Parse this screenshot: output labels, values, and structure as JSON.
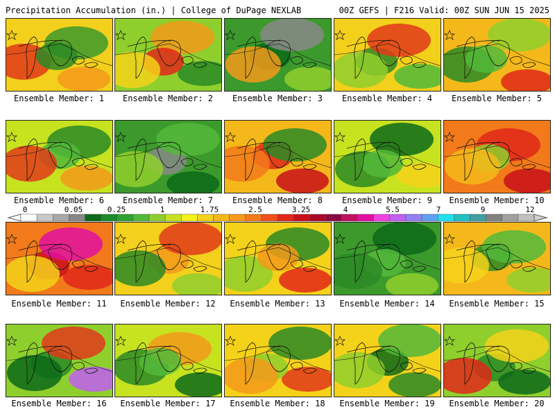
{
  "header": {
    "title_left": "Precipitation Accumulation (in.) | College of DuPage NEXLAB",
    "title_right": "00Z GEFS | F216 Valid: 00Z SUN JUN 15 2025"
  },
  "colorbar": {
    "tick_labels": [
      "0",
      "0.05",
      "0.25",
      "1",
      "1.75",
      "2.5",
      "3.25",
      "4",
      "5.5",
      "7",
      "9",
      "12"
    ],
    "segment_colors": [
      "#ffffff",
      "#c8c8c8",
      "#a8a8a8",
      "#888888",
      "#0c6a1a",
      "#1b8a28",
      "#2ea22e",
      "#52b83a",
      "#8fcf2d",
      "#c7e21f",
      "#f4f21a",
      "#f5d21a",
      "#f5b81a",
      "#f59a1a",
      "#f57a1a",
      "#f0501a",
      "#e2281a",
      "#c8101a",
      "#a80a2a",
      "#8a0a40",
      "#c01060",
      "#e010a0",
      "#f040e0",
      "#c060f0",
      "#9080f0",
      "#60a0f0",
      "#20e0f0",
      "#20c0c0",
      "#40a0a0",
      "#808080",
      "#a0a0a0",
      "#c0c0c0"
    ]
  },
  "panels": [
    {
      "label": "Ensemble Member: 1",
      "tone": "#f3d01b",
      "blobs": [
        "#e03a1a",
        "#3c9a2c",
        "#f29a1a",
        "#2c8a26"
      ]
    },
    {
      "label": "Ensemble Member: 2",
      "tone": "#8fcf2d",
      "blobs": [
        "#f29a1a",
        "#2c8a26",
        "#e0281a",
        "#f5d21a"
      ]
    },
    {
      "label": "Ensemble Member: 3",
      "tone": "#3c9a2c",
      "blobs": [
        "#8fcf2d",
        "#0c6a1a",
        "#f29a1a",
        "#888888"
      ]
    },
    {
      "label": "Ensemble Member: 4",
      "tone": "#f3d01b",
      "blobs": [
        "#2c8a26",
        "#8fcf2d",
        "#e03a1a",
        "#52b83a"
      ]
    },
    {
      "label": "Ensemble Member: 5",
      "tone": "#f5b81a",
      "blobs": [
        "#2c8a26",
        "#8fcf2d",
        "#e0281a",
        "#52b83a"
      ]
    },
    {
      "label": "Ensemble Member: 6",
      "tone": "#c7e21f",
      "blobs": [
        "#2c8a26",
        "#f29a1a",
        "#52b83a",
        "#e03a1a"
      ]
    },
    {
      "label": "Ensemble Member: 7",
      "tone": "#3c9a2c",
      "blobs": [
        "#0c6a1a",
        "#888888",
        "#8fcf2d",
        "#52b83a"
      ]
    },
    {
      "label": "Ensemble Member: 8",
      "tone": "#f5b81a",
      "blobs": [
        "#e0281a",
        "#f27a1a",
        "#2c8a26",
        "#c8101a"
      ]
    },
    {
      "label": "Ensemble Member: 9",
      "tone": "#c7e21f",
      "blobs": [
        "#2c8a26",
        "#0c6a1a",
        "#f5d21a",
        "#52b83a"
      ]
    },
    {
      "label": "Ensemble Member: 10",
      "tone": "#f27a1a",
      "blobs": [
        "#e0281a",
        "#c8101a",
        "#8fcf2d",
        "#f5b81a"
      ]
    },
    {
      "label": "Ensemble Member: 11",
      "tone": "#f27a1a",
      "blobs": [
        "#e0281a",
        "#c8101a",
        "#f5d21a",
        "#e010a0"
      ]
    },
    {
      "label": "Ensemble Member: 12",
      "tone": "#f3d01b",
      "blobs": [
        "#f29a1a",
        "#2c8a26",
        "#e03a1a",
        "#8fcf2d"
      ]
    },
    {
      "label": "Ensemble Member: 13",
      "tone": "#f5d21a",
      "blobs": [
        "#8fcf2d",
        "#2c8a26",
        "#e0281a",
        "#f29a1a"
      ]
    },
    {
      "label": "Ensemble Member: 14",
      "tone": "#3c9a2c",
      "blobs": [
        "#0c6a1a",
        "#8fcf2d",
        "#52b83a",
        "#2c8a26"
      ]
    },
    {
      "label": "Ensemble Member: 15",
      "tone": "#f5b81a",
      "blobs": [
        "#8fcf2d",
        "#2c8a26",
        "#f5d21a",
        "#52b83a"
      ]
    },
    {
      "label": "Ensemble Member: 16",
      "tone": "#8fcf2d",
      "blobs": [
        "#2c8a26",
        "#0c6a1a",
        "#e03a1a",
        "#c060f0"
      ]
    },
    {
      "label": "Ensemble Member: 17",
      "tone": "#c7e21f",
      "blobs": [
        "#2c8a26",
        "#f29a1a",
        "#0c6a1a",
        "#52b83a"
      ]
    },
    {
      "label": "Ensemble Member: 18",
      "tone": "#f5d21a",
      "blobs": [
        "#2c8a26",
        "#e03a1a",
        "#8fcf2d",
        "#f29a1a"
      ]
    },
    {
      "label": "Ensemble Member: 19",
      "tone": "#f5d21a",
      "blobs": [
        "#2c8a26",
        "#0c6a1a",
        "#8fcf2d",
        "#52b83a"
      ]
    },
    {
      "label": "Ensemble Member: 20",
      "tone": "#8fcf2d",
      "blobs": [
        "#2c8a26",
        "#e0281a",
        "#f5d21a",
        "#0c6a1a"
      ]
    }
  ]
}
